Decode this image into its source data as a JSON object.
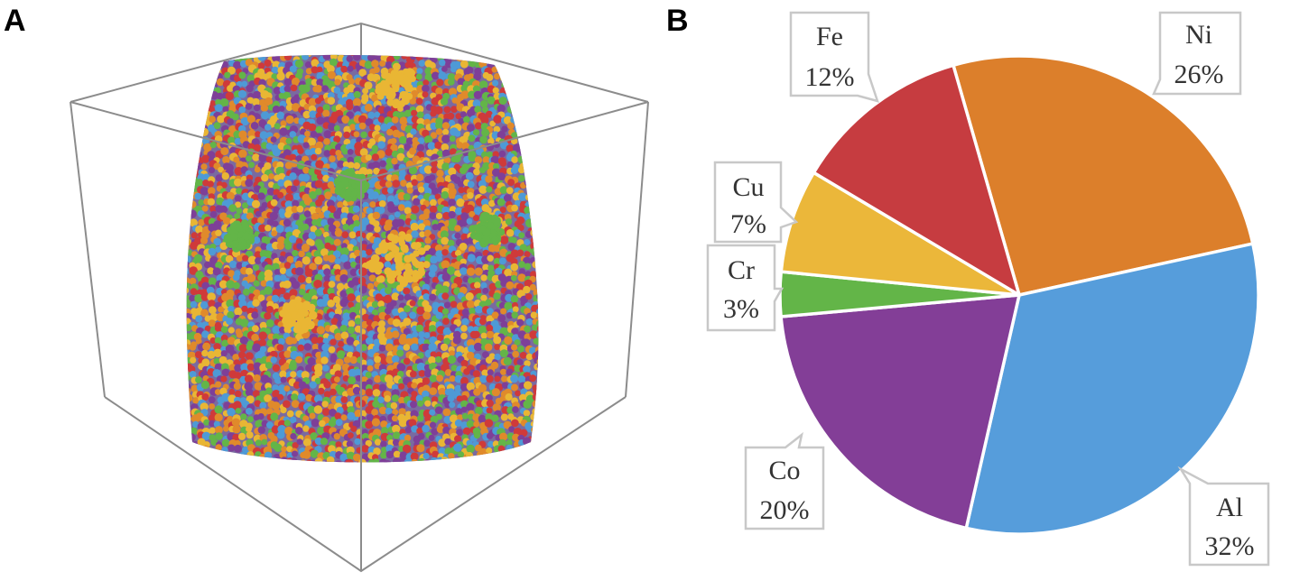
{
  "panels": {
    "a_label": "A",
    "b_label": "B"
  },
  "simulation": {
    "atom_colors": [
      "#4e9ad6",
      "#cf3a3a",
      "#e08a2b",
      "#7e3f98",
      "#e9b634",
      "#63b548"
    ]
  },
  "chart_data": {
    "type": "pie",
    "title": "",
    "unit": "%",
    "slices": [
      {
        "label": "Ni",
        "value": 26,
        "display": "26%",
        "color": "#dc7f2b"
      },
      {
        "label": "Al",
        "value": 32,
        "display": "32%",
        "color": "#569ddb"
      },
      {
        "label": "Co",
        "value": 20,
        "display": "20%",
        "color": "#833e97"
      },
      {
        "label": "Cr",
        "value": 3,
        "display": "3%",
        "color": "#63b548"
      },
      {
        "label": "Cu",
        "value": 7,
        "display": "7%",
        "color": "#ebb73a"
      },
      {
        "label": "Fe",
        "value": 12,
        "display": "12%",
        "color": "#c63c40"
      }
    ]
  }
}
